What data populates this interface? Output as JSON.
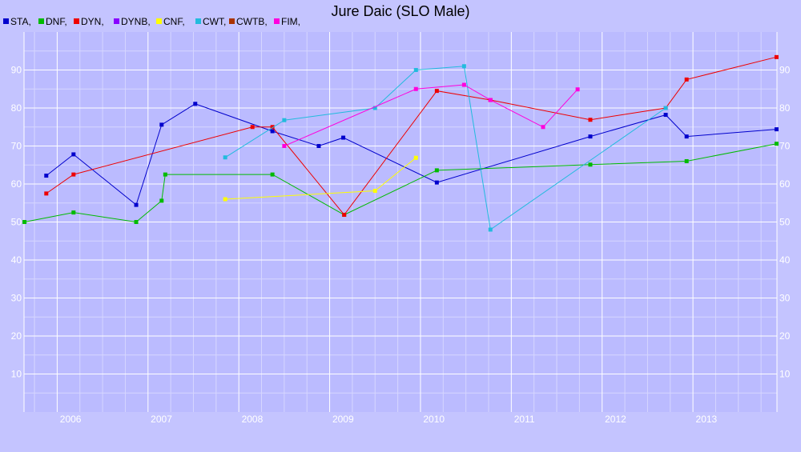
{
  "chart_data": {
    "type": "line",
    "title": "Jure Daic (SLO Male)",
    "xlabel": "",
    "ylabel": "",
    "xlim": [
      2005.635,
      2013.925
    ],
    "ylim": [
      0,
      100
    ],
    "x_ticks": [
      "2006",
      "2007",
      "2008",
      "2009",
      "2010",
      "2011",
      "2012",
      "2013"
    ],
    "y_ticks": [
      10,
      20,
      30,
      40,
      50,
      60,
      70,
      80,
      90
    ],
    "grid": true,
    "legend_position": "top-left",
    "series": [
      {
        "name": "STA",
        "color": "#0000cc",
        "points": [
          [
            2005.88,
            62.2
          ],
          [
            2006.18,
            67.8
          ],
          [
            2006.87,
            54.5
          ],
          [
            2007.15,
            75.6
          ],
          [
            2007.52,
            81.1
          ],
          [
            2008.37,
            73.9
          ],
          [
            2008.88,
            70.0
          ],
          [
            2009.15,
            72.2
          ],
          [
            2010.18,
            60.4
          ],
          [
            2011.87,
            72.5
          ],
          [
            2012.7,
            78.2
          ],
          [
            2012.93,
            72.5
          ],
          [
            2013.92,
            74.4
          ]
        ]
      },
      {
        "name": "DNF",
        "color": "#00bb00",
        "points": [
          [
            2005.64,
            50.0
          ],
          [
            2006.18,
            52.5
          ],
          [
            2006.87,
            50.0
          ],
          [
            2007.15,
            55.6
          ],
          [
            2007.19,
            62.5
          ],
          [
            2008.37,
            62.5
          ],
          [
            2009.16,
            51.9
          ],
          [
            2010.18,
            63.6
          ],
          [
            2011.87,
            65.1
          ],
          [
            2012.93,
            66.0
          ],
          [
            2013.92,
            70.6
          ]
        ]
      },
      {
        "name": "DYN",
        "color": "#ee0000",
        "points": [
          [
            2005.88,
            57.5
          ],
          [
            2006.18,
            62.5
          ],
          [
            2008.15,
            75.0
          ],
          [
            2008.37,
            75.0
          ],
          [
            2009.16,
            51.9
          ],
          [
            2010.18,
            84.5
          ],
          [
            2010.77,
            82.1
          ],
          [
            2011.87,
            76.9
          ],
          [
            2012.7,
            80.0
          ],
          [
            2012.93,
            87.5
          ],
          [
            2013.92,
            93.4
          ]
        ]
      },
      {
        "name": "DYNB",
        "color": "#8800ff",
        "points": []
      },
      {
        "name": "CNF",
        "color": "#ffff00",
        "points": [
          [
            2007.85,
            56.0
          ],
          [
            2009.5,
            58.2
          ],
          [
            2009.95,
            66.9
          ]
        ]
      },
      {
        "name": "CWT",
        "color": "#22bbdd",
        "points": [
          [
            2007.85,
            67.0
          ],
          [
            2008.5,
            76.8
          ],
          [
            2009.5,
            80.0
          ],
          [
            2009.95,
            90.0
          ],
          [
            2010.48,
            91.0
          ],
          [
            2010.77,
            48.0
          ],
          [
            2012.7,
            80.0
          ]
        ]
      },
      {
        "name": "CWTB",
        "color": "#aa3300",
        "points": []
      },
      {
        "name": "FIM",
        "color": "#ff00dd",
        "points": [
          [
            2008.5,
            70.0
          ],
          [
            2009.95,
            85.0
          ],
          [
            2010.48,
            86.1
          ],
          [
            2010.77,
            82.1
          ],
          [
            2011.35,
            75.0
          ],
          [
            2011.73,
            84.9
          ]
        ]
      }
    ]
  }
}
